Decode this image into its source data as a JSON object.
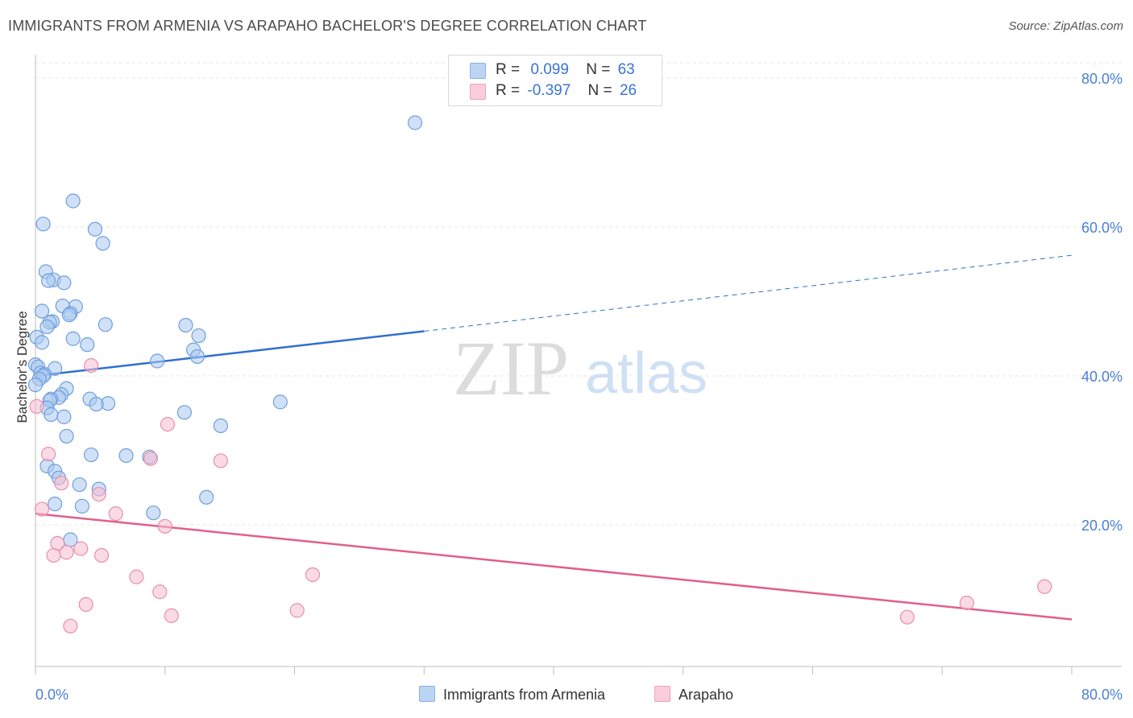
{
  "title": "IMMIGRANTS FROM ARMENIA VS ARAPAHO BACHELOR'S DEGREE CORRELATION CHART",
  "source": "Source: ZipAtlas.com",
  "watermark": {
    "zip": "ZIP",
    "atlas": "atlas"
  },
  "legend": {
    "series1": {
      "r_label": "R =",
      "r_value": "0.099",
      "n_label": "N =",
      "n_value": "63"
    },
    "series2": {
      "r_label": "R =",
      "r_value": "-0.397",
      "n_label": "N =",
      "n_value": "26"
    }
  },
  "chart_data": {
    "type": "scatter",
    "title": "IMMIGRANTS FROM ARMENIA VS ARAPAHO BACHELOR'S DEGREE CORRELATION CHART",
    "xlabel": "",
    "ylabel": "Bachelor's Degree",
    "xlim": [
      0,
      80
    ],
    "ylim": [
      0,
      82
    ],
    "x_tick_labels": [
      "0.0%",
      "80.0%"
    ],
    "y_ticks": [
      20,
      40,
      60,
      80
    ],
    "y_tick_labels": [
      "20.0%",
      "40.0%",
      "60.0%",
      "80.0%"
    ],
    "grid": true,
    "series": [
      {
        "name": "Immigrants from Armenia",
        "color": "#a9c8f0",
        "stroke": "#6f9fdc",
        "trend_color": "#2f6fd0",
        "trend": {
          "x0": 0,
          "y0": 40.0,
          "x1": 30,
          "y1": 46.0,
          "dash_x_end": 80,
          "dash_y_end": 56.2
        },
        "points": [
          [
            29.3,
            74.0
          ],
          [
            2.9,
            63.5
          ],
          [
            0.6,
            60.4
          ],
          [
            4.6,
            59.7
          ],
          [
            5.2,
            57.8
          ],
          [
            0.8,
            54.0
          ],
          [
            1.4,
            52.9
          ],
          [
            1.0,
            52.8
          ],
          [
            2.2,
            52.5
          ],
          [
            3.1,
            49.3
          ],
          [
            2.1,
            49.4
          ],
          [
            0.5,
            48.7
          ],
          [
            2.7,
            48.4
          ],
          [
            2.6,
            48.2
          ],
          [
            1.3,
            47.3
          ],
          [
            1.1,
            47.2
          ],
          [
            0.9,
            46.6
          ],
          [
            5.4,
            46.9
          ],
          [
            11.6,
            46.8
          ],
          [
            12.6,
            45.4
          ],
          [
            0.1,
            45.2
          ],
          [
            2.9,
            45.0
          ],
          [
            0.5,
            44.5
          ],
          [
            4.0,
            44.2
          ],
          [
            12.2,
            43.5
          ],
          [
            12.5,
            42.6
          ],
          [
            9.4,
            42.0
          ],
          [
            0.0,
            41.5
          ],
          [
            0.2,
            41.2
          ],
          [
            1.5,
            41.0
          ],
          [
            0.4,
            40.4
          ],
          [
            0.7,
            40.2
          ],
          [
            0.6,
            40.0
          ],
          [
            0.3,
            39.6
          ],
          [
            2.4,
            38.3
          ],
          [
            2.0,
            37.5
          ],
          [
            1.8,
            37.1
          ],
          [
            1.2,
            36.9
          ],
          [
            1.1,
            36.7
          ],
          [
            4.2,
            36.9
          ],
          [
            18.9,
            36.5
          ],
          [
            5.6,
            36.3
          ],
          [
            4.7,
            36.2
          ],
          [
            0.9,
            35.7
          ],
          [
            11.5,
            35.1
          ],
          [
            1.2,
            34.8
          ],
          [
            2.2,
            34.5
          ],
          [
            14.3,
            33.3
          ],
          [
            2.4,
            31.9
          ],
          [
            4.3,
            29.4
          ],
          [
            7.0,
            29.3
          ],
          [
            8.8,
            29.1
          ],
          [
            0.9,
            27.9
          ],
          [
            1.5,
            27.2
          ],
          [
            1.8,
            26.3
          ],
          [
            3.4,
            25.4
          ],
          [
            4.9,
            24.8
          ],
          [
            13.2,
            23.7
          ],
          [
            1.5,
            22.8
          ],
          [
            3.6,
            22.5
          ],
          [
            9.1,
            21.6
          ],
          [
            2.7,
            18.0
          ],
          [
            0.0,
            38.8
          ]
        ]
      },
      {
        "name": "Arapaho",
        "color": "#f6bcd0",
        "stroke": "#e88fae",
        "trend_color": "#e0608a",
        "trend": {
          "x0": 0,
          "y0": 21.5,
          "x1": 80,
          "y1": 7.3
        },
        "points": [
          [
            4.3,
            41.4
          ],
          [
            0.1,
            35.9
          ],
          [
            10.2,
            33.5
          ],
          [
            1.0,
            29.5
          ],
          [
            8.9,
            28.9
          ],
          [
            14.3,
            28.6
          ],
          [
            2.0,
            25.6
          ],
          [
            4.9,
            24.1
          ],
          [
            0.5,
            22.1
          ],
          [
            6.2,
            21.5
          ],
          [
            10.0,
            19.8
          ],
          [
            1.7,
            17.5
          ],
          [
            3.5,
            16.8
          ],
          [
            2.4,
            16.3
          ],
          [
            1.4,
            15.9
          ],
          [
            5.1,
            15.9
          ],
          [
            21.4,
            13.3
          ],
          [
            7.8,
            13.0
          ],
          [
            9.6,
            11.0
          ],
          [
            3.9,
            9.3
          ],
          [
            20.2,
            8.5
          ],
          [
            10.5,
            7.8
          ],
          [
            2.7,
            6.4
          ],
          [
            67.3,
            7.6
          ],
          [
            71.9,
            9.5
          ],
          [
            77.9,
            11.7
          ]
        ]
      }
    ]
  },
  "bottom_legend": [
    "Immigrants from Armenia",
    "Arapaho"
  ]
}
